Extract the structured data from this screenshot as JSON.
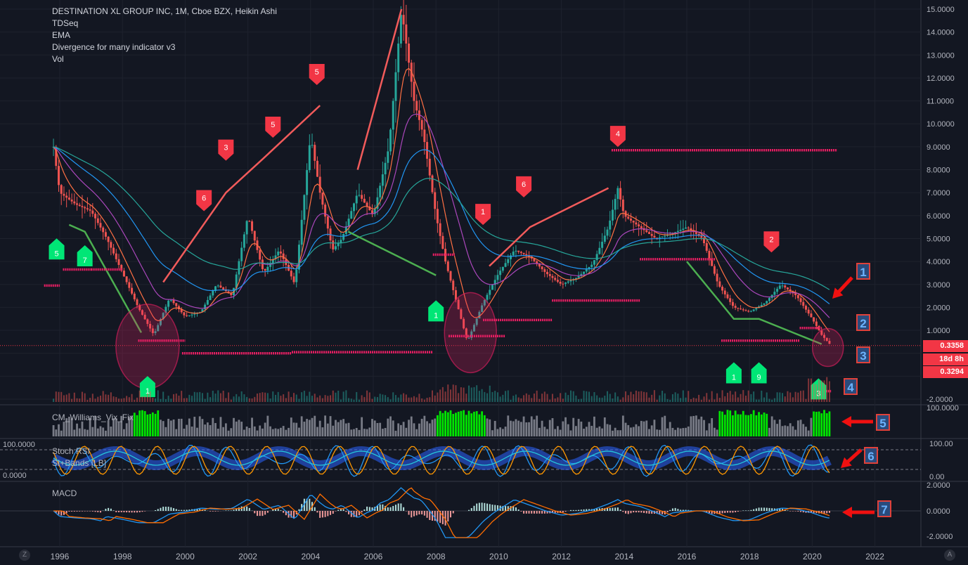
{
  "header": {
    "title": "DESTINATION XL GROUP INC, 1M, Cboe BZX, Heikin Ashi",
    "indicators": [
      "TDSeq",
      "EMA",
      "Divergence for many indicator v3",
      "Vol"
    ]
  },
  "panes": {
    "vix_label": "CM_Williams_Vix_Fix",
    "stoch_label": "Stoch RSI",
    "stoch_label2": "SI+Bands [LB]",
    "macd_label": "MACD"
  },
  "price_axis": {
    "ticks": [
      "15.0000",
      "14.0000",
      "13.0000",
      "12.0000",
      "11.0000",
      "10.0000",
      "9.0000",
      "8.0000",
      "7.0000",
      "6.0000",
      "5.0000",
      "4.0000",
      "3.0000",
      "2.0000",
      "1.0000",
      "-2.0000"
    ],
    "last_price": "0.3358",
    "countdown": "18d 8h",
    "low_price": "0.3294"
  },
  "vix_axis": {
    "top": "100.0000"
  },
  "stoch_axis": {
    "left_top": "100.0000",
    "left_bottom": "0.0000",
    "right_top": "100.00",
    "right_bottom": "0.00"
  },
  "macd_axis": {
    "ticks": [
      "2.0000",
      "0.0000",
      "-2.0000"
    ]
  },
  "time_axis": {
    "labels": [
      "1996",
      "1998",
      "2000",
      "2002",
      "2004",
      "2006",
      "2008",
      "2010",
      "2012",
      "2014",
      "2016",
      "2018",
      "2020",
      "2022"
    ]
  },
  "corner_left": "Z",
  "corner_right": "A",
  "annotations": [
    "1",
    "2",
    "3",
    "4",
    "5",
    "6",
    "7"
  ],
  "colors": {
    "bg": "#131722",
    "up": "#26a69a",
    "down": "#ef5350",
    "grid": "#1e222d",
    "signal_green": "#00e676",
    "signal_red": "#f23645",
    "level_pink": "#e91e63"
  },
  "chart_data": {
    "type": "candlestick",
    "title": "DESTINATION XL GROUP INC, 1M, Cboe BZX, Heikin Ashi",
    "x": [
      1995.8,
      1996.0,
      1996.5,
      1997.0,
      1997.5,
      1998.0,
      1998.5,
      1999.0,
      1999.5,
      2000.0,
      2000.5,
      2001.0,
      2001.5,
      2002.0,
      2002.5,
      2003.0,
      2003.5,
      2004.0,
      2004.3,
      2004.7,
      2005.0,
      2005.5,
      2006.0,
      2006.5,
      2006.9,
      2007.3,
      2007.6,
      2008.0,
      2008.3,
      2008.7,
      2009.0,
      2009.5,
      2010.0,
      2010.5,
      2011.0,
      2011.5,
      2012.0,
      2012.5,
      2013.0,
      2013.5,
      2013.8,
      2014.0,
      2014.5,
      2015.0,
      2015.5,
      2016.0,
      2016.5,
      2017.0,
      2017.5,
      2018.0,
      2018.5,
      2019.0,
      2019.5,
      2020.0,
      2020.3,
      2020.6
    ],
    "price": [
      9.0,
      7.0,
      6.5,
      6.2,
      5.0,
      3.5,
      2.0,
      0.8,
      2.4,
      1.6,
      1.8,
      3.0,
      2.5,
      6.0,
      3.5,
      4.5,
      3.0,
      9.5,
      7.0,
      4.5,
      5.0,
      7.0,
      6.0,
      9.0,
      15.0,
      11.0,
      9.5,
      6.0,
      4.0,
      2.0,
      0.5,
      2.2,
      3.5,
      4.5,
      4.2,
      3.5,
      3.0,
      3.3,
      3.9,
      5.5,
      7.2,
      6.0,
      5.5,
      5.0,
      5.2,
      5.5,
      5.0,
      3.0,
      2.0,
      1.8,
      2.2,
      3.0,
      2.5,
      1.5,
      0.8,
      0.3358
    ],
    "ylim": [
      -2,
      15
    ],
    "xlim": [
      1995.5,
      2023
    ]
  }
}
